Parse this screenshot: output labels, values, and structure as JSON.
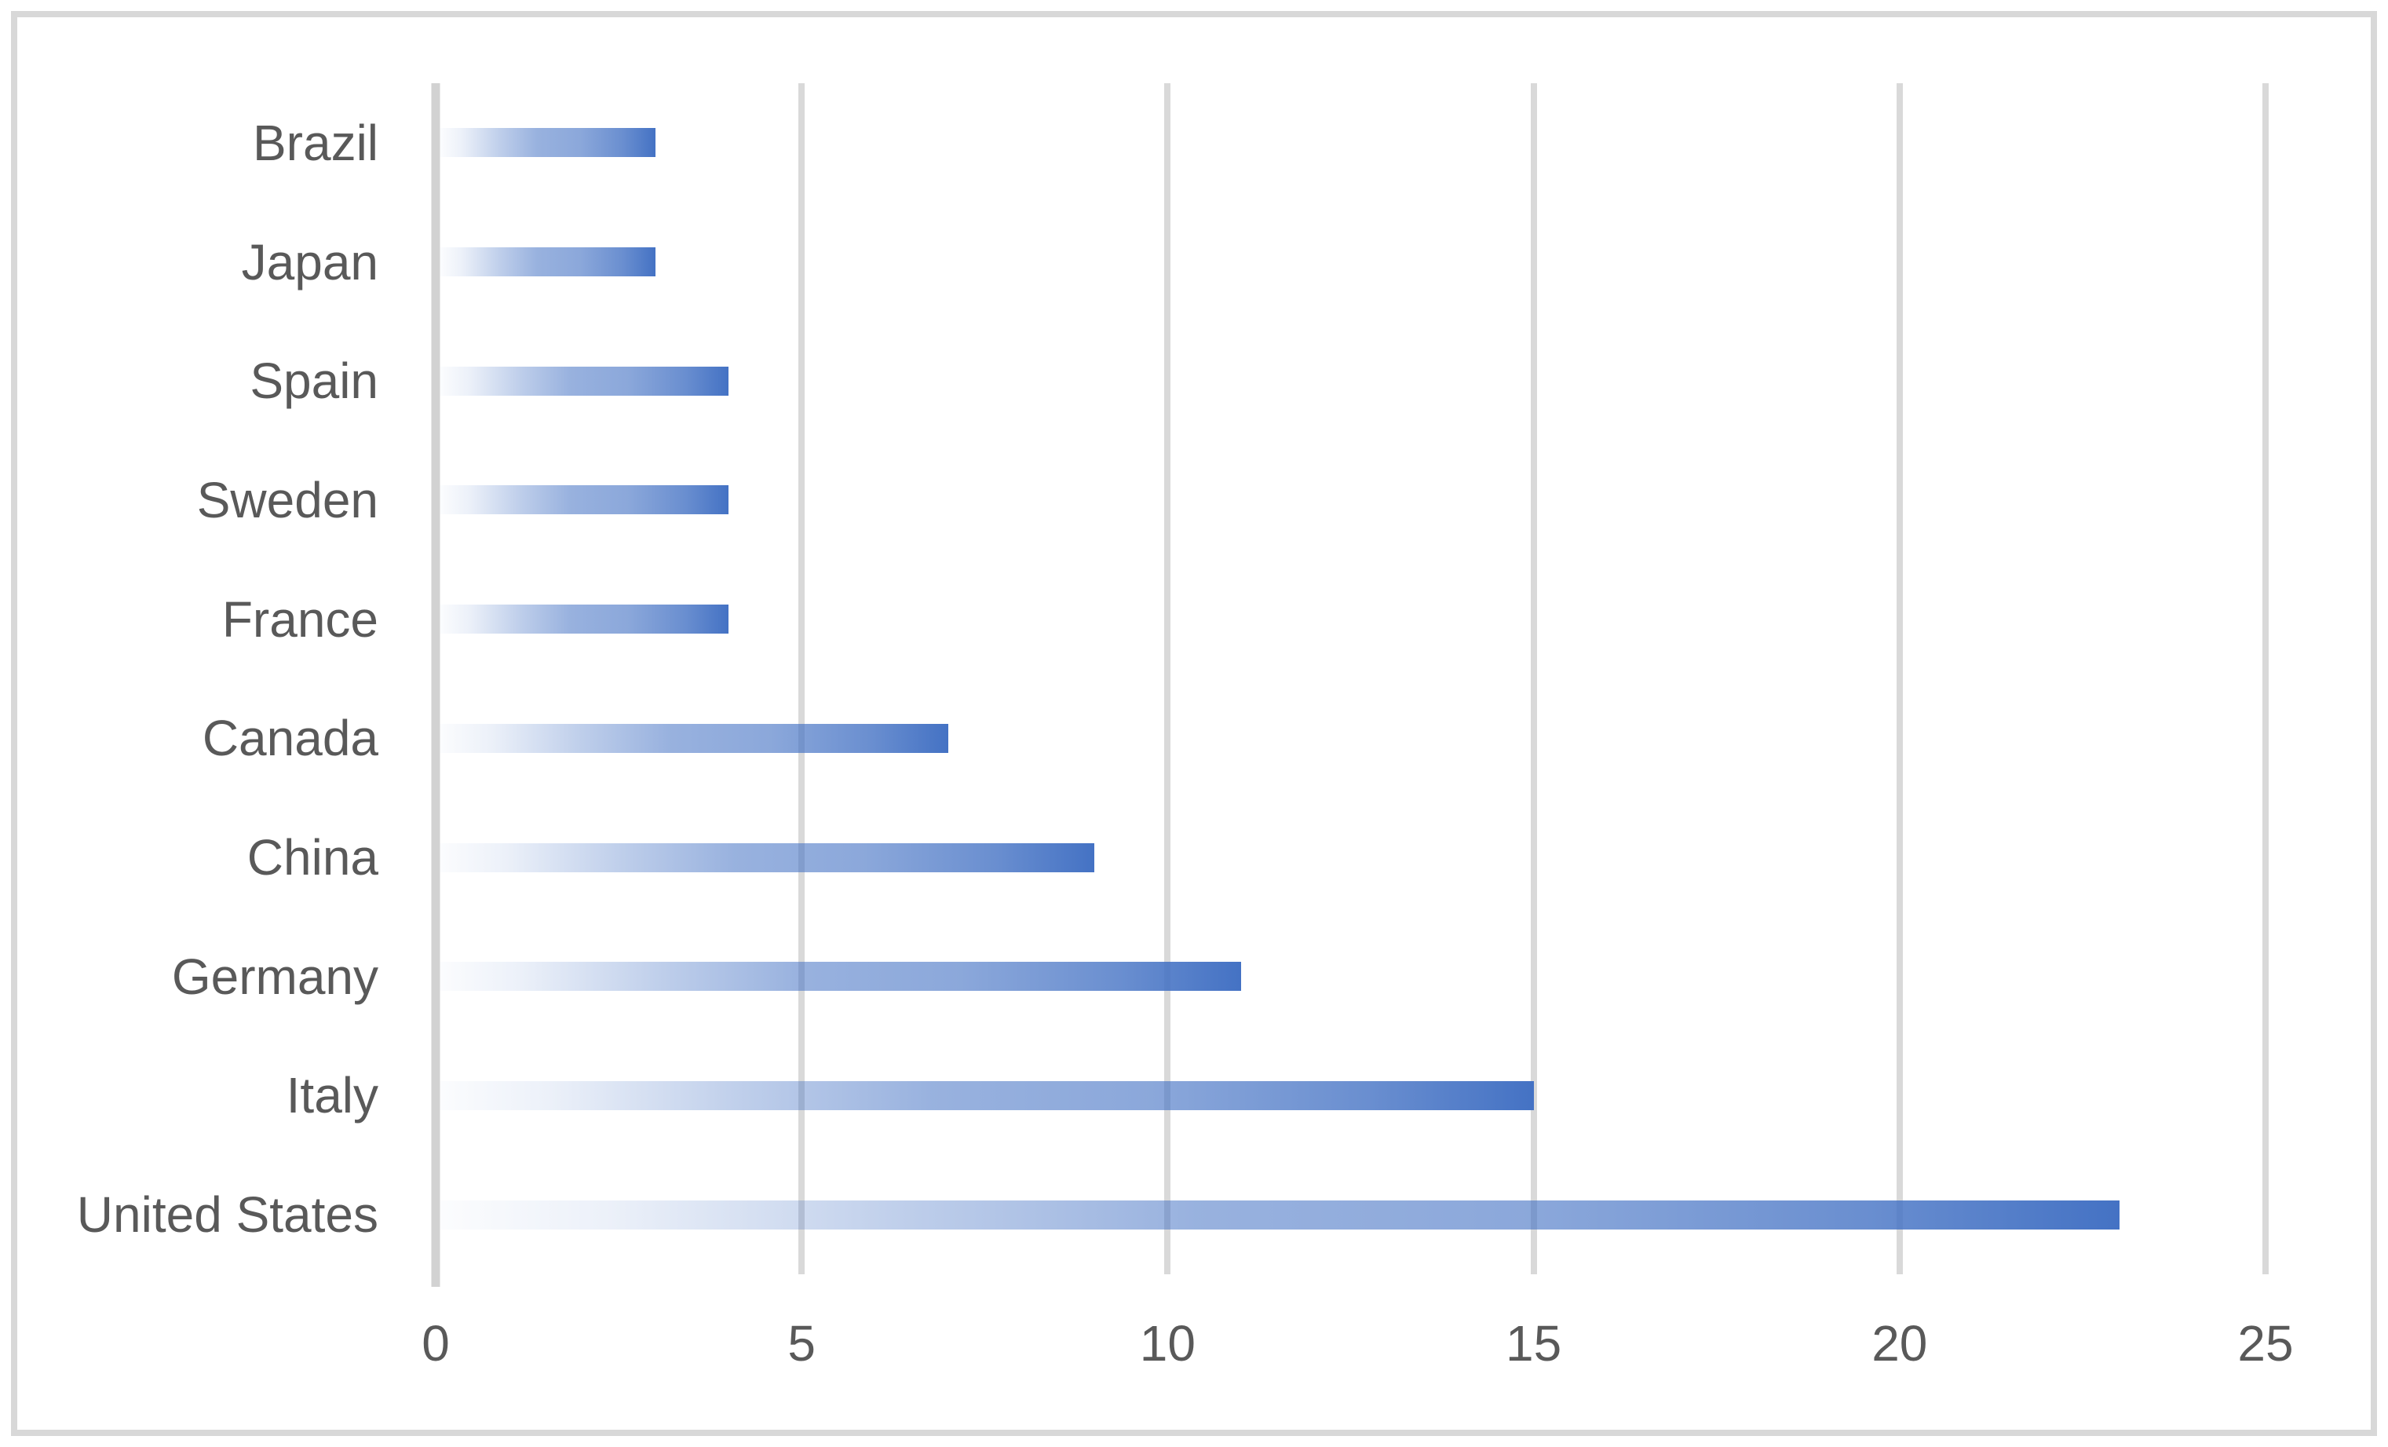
{
  "chart_data": {
    "type": "bar",
    "orientation": "horizontal",
    "title": "",
    "xlabel": "",
    "ylabel": "",
    "categories": [
      "Brazil",
      "Japan",
      "Spain",
      "Sweden",
      "France",
      "Canada",
      "China",
      "Germany",
      "Italy",
      "United States"
    ],
    "values": [
      3,
      3,
      4,
      4,
      4,
      7,
      9,
      11,
      15,
      23
    ],
    "xlim": [
      0,
      25
    ],
    "xticks": [
      0,
      5,
      10,
      15,
      20,
      25
    ],
    "tick_labels": [
      "0",
      "5",
      "10",
      "15",
      "20",
      "25"
    ],
    "grid": true,
    "legend": false,
    "colors": {
      "bar_fill_solid": "#4472C4",
      "bar_gradient_start": "#FFFFFF",
      "gridline": "#D9D9D9",
      "axis_line": "#D2D2D2",
      "label_text": "#595959",
      "chart_border": "#D8D8D8",
      "background": "#FFFFFF"
    }
  }
}
